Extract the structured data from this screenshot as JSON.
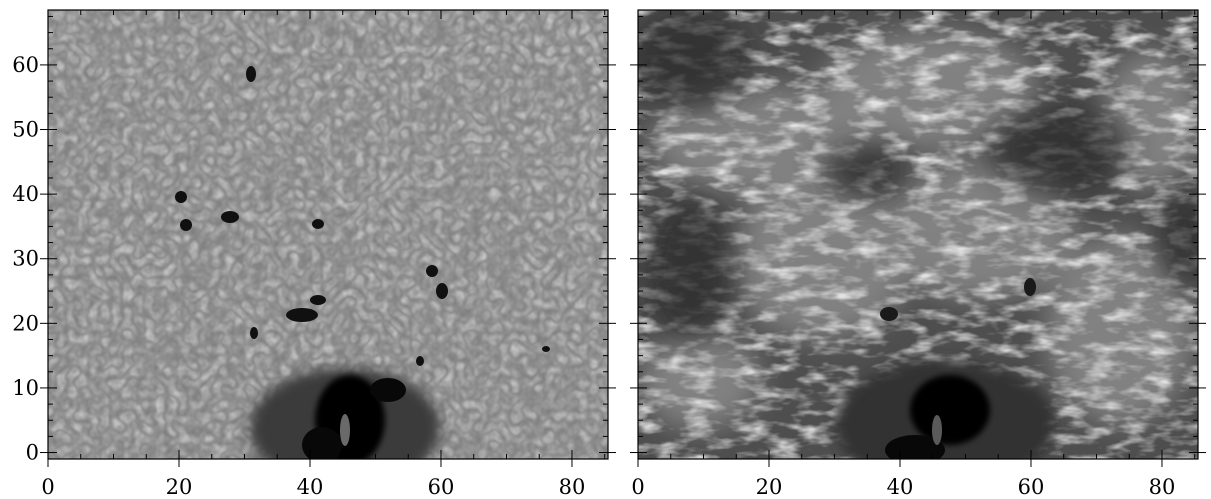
{
  "panels": [
    {
      "id": "left",
      "description_free": true,
      "x_ticks": [
        "0",
        "20",
        "40",
        "60",
        "80"
      ],
      "y_ticks": [
        "0",
        "10",
        "20",
        "30",
        "40",
        "50",
        "60"
      ],
      "x_range": [
        0,
        85.5
      ],
      "y_range": [
        -1,
        68.5
      ]
    },
    {
      "id": "right",
      "x_ticks": [
        "0",
        "20",
        "40",
        "60",
        "80"
      ],
      "y_ticks": [],
      "x_range": [
        0,
        85.5
      ],
      "y_range": [
        -1,
        68.5
      ]
    }
  ],
  "colors": {
    "left_background": "#8c8c8c",
    "right_background": "#555555",
    "axis": "#000000"
  }
}
